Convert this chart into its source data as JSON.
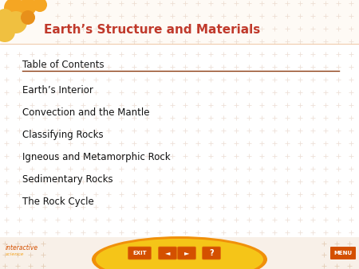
{
  "title": "Earth’s Structure and Materials",
  "title_color": "#c0392b",
  "title_fontsize": 11,
  "background_color": "#ffffff",
  "toc_header": "Table of Contents",
  "toc_items": [
    "Earth’s Interior",
    "Convection and the Mantle",
    "Classifying Rocks",
    "Igneous and Metamorphic Rock",
    "Sedimentary Rocks",
    "The Rock Cycle"
  ],
  "toc_header_fontsize": 8.5,
  "toc_item_fontsize": 8.5,
  "toc_line_color": "#8B3A10",
  "cross_color": "#e0c8b8",
  "bubble_data": [
    [
      18,
      10,
      13,
      "#f5a623"
    ],
    [
      35,
      8,
      11,
      "#f5a623"
    ],
    [
      50,
      6,
      9,
      "#f5a623"
    ],
    [
      6,
      22,
      11,
      "#f0c040"
    ],
    [
      20,
      28,
      14,
      "#f0c040"
    ],
    [
      6,
      40,
      13,
      "#f0c040"
    ],
    [
      35,
      22,
      9,
      "#e8901a"
    ]
  ],
  "bottom_bar_yellow": "#f5c518",
  "bottom_bar_orange": "#f0900a",
  "btn_color": "#d45000",
  "btn_highlight": "#e07010",
  "interactive_color": "#d45000",
  "science_color": "#f5a623",
  "menu_color": "#d45000",
  "bottom_bg": "#f8f0e8"
}
